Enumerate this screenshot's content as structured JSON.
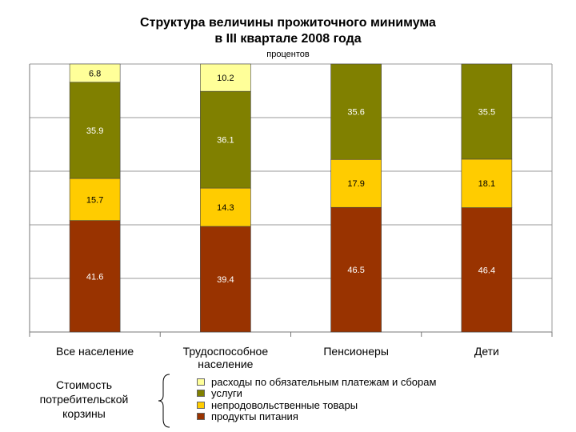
{
  "title_line1": "Структура величины прожиточного минимума",
  "title_line2": "в  III квартале 2008 года",
  "unit_label": "процентов",
  "basket_label": [
    "Стоимость",
    "потребительской",
    "корзины"
  ],
  "colors": {
    "obligatory": "#FFFF99",
    "services": "#808000",
    "nonfood": "#FFCC00",
    "food": "#993300"
  },
  "chart_data": {
    "type": "bar",
    "stacked": true,
    "grid": true,
    "ylim": [
      0,
      100
    ],
    "categories": [
      "Все население",
      "Трудоспособное население",
      "Пенсионеры",
      "Дети"
    ],
    "category_lines": [
      [
        "Все население"
      ],
      [
        "Трудоспособное",
        "население"
      ],
      [
        "Пенсионеры"
      ],
      [
        "Дети"
      ]
    ],
    "series": [
      {
        "key": "food",
        "name": "продукты питания",
        "values": [
          41.6,
          39.4,
          46.5,
          46.4
        ],
        "labels": [
          "41.6",
          "39.4",
          "46.5",
          "46.4"
        ]
      },
      {
        "key": "nonfood",
        "name": "непродовольственные товары",
        "values": [
          15.7,
          14.3,
          17.9,
          18.1
        ],
        "labels": [
          "15.7",
          "14.3",
          "17.9",
          "18.1"
        ]
      },
      {
        "key": "services",
        "name": "услуги",
        "values": [
          35.9,
          36.1,
          35.6,
          35.5
        ],
        "labels": [
          "35.9",
          "36.1",
          "35.6",
          "35.5"
        ]
      },
      {
        "key": "obligatory",
        "name": "расходы по обязательным платежам и сборам",
        "values": [
          6.8,
          10.2,
          0,
          0
        ],
        "labels": [
          "6.8",
          "10.2",
          "",
          ""
        ]
      }
    ],
    "legend_order": [
      "obligatory",
      "services",
      "nonfood",
      "food"
    ]
  }
}
